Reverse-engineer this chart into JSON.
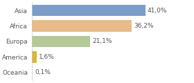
{
  "categories": [
    "Asia",
    "Africa",
    "Europa",
    "America",
    "Oceania"
  ],
  "values": [
    41.0,
    36.2,
    21.1,
    1.6,
    0.1
  ],
  "labels": [
    "41,0%",
    "36,2%",
    "21,1%",
    "1,6%",
    "0,1%"
  ],
  "bar_colors": [
    "#7b9dc8",
    "#e8bc88",
    "#b5c898",
    "#d4b840",
    "#e0e0e0"
  ],
  "background_color": "#ffffff",
  "xlim": [
    0,
    58
  ],
  "label_fontsize": 6.5,
  "category_fontsize": 6.5,
  "bar_height": 0.72
}
